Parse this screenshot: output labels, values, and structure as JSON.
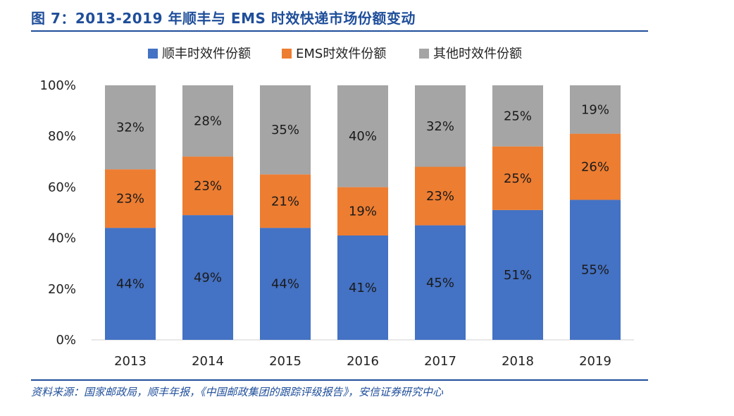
{
  "figure": {
    "title": "图 7：2013-2019 年顺丰与 EMS 时效快递市场份额变动",
    "source": "资料来源：国家邮政局，顺丰年报，《中国邮政集团的跟踪评级报告》，安信证券研究中心"
  },
  "chart_data": {
    "type": "bar",
    "stacked": true,
    "categories": [
      "2013",
      "2014",
      "2015",
      "2016",
      "2017",
      "2018",
      "2019"
    ],
    "series": [
      {
        "name": "顺丰时效件份额",
        "color": "#4472c4",
        "values": [
          44,
          49,
          44,
          41,
          45,
          51,
          55
        ]
      },
      {
        "name": "EMS时效件份额",
        "color": "#ed7d31",
        "values": [
          23,
          23,
          21,
          19,
          23,
          25,
          26
        ]
      },
      {
        "name": "其他时效件份额",
        "color": "#a5a5a5",
        "values": [
          32,
          28,
          35,
          40,
          32,
          25,
          19
        ]
      }
    ],
    "ylim": [
      0,
      100
    ],
    "yticks": [
      0,
      20,
      40,
      60,
      80,
      100
    ],
    "ytick_suffix": "%",
    "data_label_suffix": "%",
    "legend_position": "top",
    "grid": false,
    "title": "",
    "xlabel": "",
    "ylabel": ""
  }
}
